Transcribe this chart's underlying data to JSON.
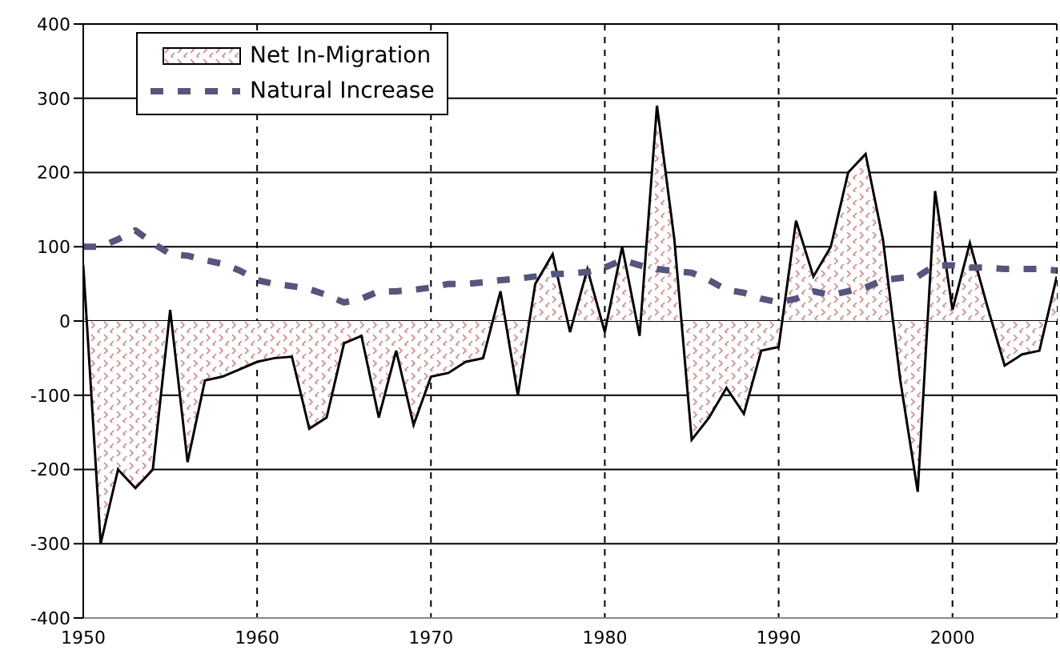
{
  "chart_data": {
    "type": "line",
    "x": [
      1950,
      1951,
      1952,
      1953,
      1954,
      1955,
      1956,
      1957,
      1958,
      1959,
      1960,
      1961,
      1962,
      1963,
      1964,
      1965,
      1966,
      1967,
      1968,
      1969,
      1970,
      1971,
      1972,
      1973,
      1974,
      1975,
      1976,
      1977,
      1978,
      1979,
      1980,
      1981,
      1982,
      1983,
      1984,
      1985,
      1986,
      1987,
      1988,
      1989,
      1990,
      1991,
      1992,
      1993,
      1994,
      1995,
      1996,
      1997,
      1998,
      1999,
      2000,
      2001,
      2002,
      2003,
      2004,
      2005,
      2006
    ],
    "series": [
      {
        "name": "Net In-Migration",
        "type": "area",
        "color": "#d98080",
        "values": [
          75,
          -300,
          -200,
          -225,
          -200,
          15,
          -190,
          -80,
          -75,
          -65,
          -55,
          -50,
          -48,
          -145,
          -130,
          -30,
          -20,
          -130,
          -40,
          -140,
          -75,
          -70,
          -55,
          -50,
          40,
          -100,
          50,
          90,
          -15,
          70,
          -15,
          100,
          -20,
          290,
          110,
          -160,
          -130,
          -90,
          -125,
          -40,
          -35,
          135,
          60,
          100,
          200,
          225,
          110,
          -80,
          -230,
          175,
          15,
          105,
          20,
          -60,
          -45,
          -40,
          60
        ]
      },
      {
        "name": "Natural Increase",
        "line_style": "dashed",
        "color": "#55557f",
        "values": [
          100,
          100,
          110,
          122,
          105,
          90,
          88,
          82,
          77,
          68,
          55,
          50,
          47,
          43,
          35,
          25,
          30,
          40,
          40,
          42,
          45,
          50,
          50,
          52,
          55,
          57,
          60,
          63,
          64,
          66,
          72,
          82,
          75,
          70,
          67,
          65,
          55,
          42,
          38,
          30,
          25,
          30,
          40,
          35,
          40,
          45,
          55,
          58,
          60,
          75,
          75,
          72,
          72,
          70,
          70,
          70,
          68
        ]
      }
    ],
    "xlim": [
      1950,
      2006
    ],
    "xticks": [
      1950,
      1960,
      1970,
      1980,
      1990,
      2000
    ],
    "ylim": [
      -400,
      400
    ],
    "yticks": [
      -400,
      -300,
      -200,
      -100,
      0,
      100,
      200,
      300,
      400
    ],
    "grid": true,
    "legend": "top left",
    "marker": "none"
  }
}
